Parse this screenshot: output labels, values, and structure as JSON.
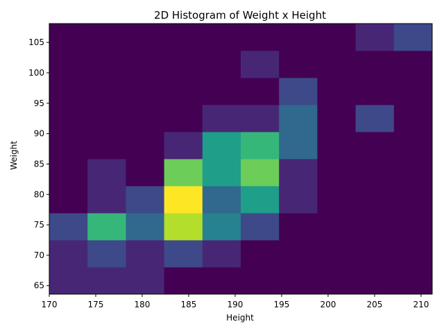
{
  "chart_data": {
    "type": "heatmap",
    "title": "2D Histogram of Weight x Height",
    "xlabel": "Height",
    "ylabel": "Weight",
    "colormap": "viridis",
    "xlim": [
      170.0,
      211.2
    ],
    "ylim": [
      63.6,
      108.1
    ],
    "x_ticks": [
      170,
      175,
      180,
      185,
      190,
      195,
      200,
      205,
      210
    ],
    "y_ticks": [
      65,
      70,
      75,
      80,
      85,
      90,
      95,
      100,
      105
    ],
    "x_bin_edges": [
      170.0,
      174.12,
      178.24,
      182.36,
      186.48,
      190.6,
      194.72,
      198.84,
      202.96,
      207.08,
      211.2
    ],
    "y_bin_edges": [
      63.6,
      68.05,
      72.5,
      76.95,
      81.4,
      85.85,
      90.3,
      94.75,
      99.2,
      103.65,
      108.1
    ],
    "counts": [
      [
        1,
        1,
        1,
        0,
        0,
        0,
        0,
        0,
        0,
        0
      ],
      [
        1,
        2,
        1,
        2,
        1,
        0,
        0,
        0,
        0,
        0
      ],
      [
        2,
        6,
        3,
        8,
        4,
        2,
        0,
        0,
        0,
        0
      ],
      [
        0,
        1,
        2,
        10,
        3,
        5,
        1,
        0,
        0,
        0
      ],
      [
        0,
        1,
        0,
        7,
        5,
        7,
        1,
        0,
        0,
        0
      ],
      [
        0,
        0,
        0,
        1,
        5,
        6,
        3,
        0,
        0,
        0
      ],
      [
        0,
        0,
        0,
        0,
        1,
        1,
        3,
        0,
        2,
        0
      ],
      [
        0,
        0,
        0,
        0,
        0,
        0,
        2,
        0,
        0,
        0
      ],
      [
        0,
        0,
        0,
        0,
        0,
        1,
        0,
        0,
        0,
        0
      ],
      [
        0,
        0,
        0,
        0,
        0,
        0,
        0,
        0,
        1,
        2
      ]
    ],
    "count_range": [
      0,
      10
    ]
  }
}
